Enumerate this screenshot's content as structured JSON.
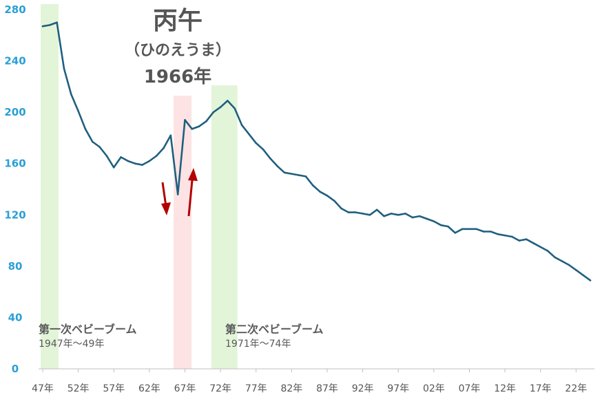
{
  "chart_data": {
    "type": "line",
    "title": "丙午",
    "subtitle": "（ひのえうま）",
    "highlight_year_label": "1966年",
    "ylim": [
      0,
      280
    ],
    "yticks": [
      0,
      40,
      80,
      120,
      160,
      200,
      240,
      280
    ],
    "xticks": [
      {
        "year": 1947,
        "label": "47年"
      },
      {
        "year": 1952,
        "label": "52年"
      },
      {
        "year": 1957,
        "label": "57年"
      },
      {
        "year": 1962,
        "label": "62年"
      },
      {
        "year": 1967,
        "label": "67年"
      },
      {
        "year": 1972,
        "label": "72年"
      },
      {
        "year": 1977,
        "label": "77年"
      },
      {
        "year": 1982,
        "label": "82年"
      },
      {
        "year": 1987,
        "label": "87年"
      },
      {
        "year": 1992,
        "label": "92年"
      },
      {
        "year": 1997,
        "label": "97年"
      },
      {
        "year": 2002,
        "label": "02年"
      },
      {
        "year": 2007,
        "label": "07年"
      },
      {
        "year": 2012,
        "label": "12年"
      },
      {
        "year": 2017,
        "label": "17年"
      },
      {
        "year": 2022,
        "label": "22年"
      }
    ],
    "bands": [
      {
        "name": "first-boom",
        "label": "第一次ベビーブーム",
        "sub": "1947年〜49年",
        "from": 1947,
        "to": 1949,
        "color": "#e2f5d8"
      },
      {
        "name": "hinoeuma",
        "label": "",
        "sub": "",
        "from": 1965.7,
        "to": 1966.3,
        "color": "#fde3e3"
      },
      {
        "name": "second-boom",
        "label": "第二次ベビーブーム",
        "sub": "1971年〜74年",
        "from": 1971,
        "to": 1974,
        "color": "#e2f5d8"
      }
    ],
    "series": [
      {
        "color": "#1f5f7f",
        "x": [
          1947,
          1948,
          1949,
          1950,
          1951,
          1952,
          1953,
          1954,
          1955,
          1956,
          1957,
          1958,
          1959,
          1960,
          1961,
          1962,
          1963,
          1964,
          1965,
          1966,
          1967,
          1968,
          1969,
          1970,
          1971,
          1972,
          1973,
          1974,
          1975,
          1976,
          1977,
          1978,
          1979,
          1980,
          1981,
          1982,
          1983,
          1984,
          1985,
          1986,
          1987,
          1988,
          1989,
          1990,
          1991,
          1992,
          1993,
          1994,
          1995,
          1996,
          1997,
          1998,
          1999,
          2000,
          2001,
          2002,
          2003,
          2004,
          2005,
          2006,
          2007,
          2008,
          2009,
          2010,
          2011,
          2012,
          2013,
          2014,
          2015,
          2016,
          2017,
          2018,
          2019,
          2020,
          2021,
          2022,
          2023,
          2024
        ],
        "values": [
          267,
          268,
          270,
          234,
          214,
          201,
          187,
          177,
          173,
          166,
          157,
          165,
          162,
          160,
          159,
          162,
          166,
          172,
          182,
          136,
          194,
          187,
          189,
          193,
          200,
          204,
          209,
          203,
          190,
          183,
          176,
          171,
          164,
          158,
          153,
          152,
          151,
          150,
          143,
          138,
          135,
          131,
          125,
          122,
          122,
          121,
          120,
          124,
          119,
          121,
          120,
          121,
          118,
          119,
          117,
          115,
          112,
          111,
          106,
          109,
          109,
          109,
          107,
          107,
          105,
          104,
          103,
          100,
          101,
          98,
          95,
          92,
          87,
          84,
          81,
          77,
          73,
          69
        ]
      }
    ]
  }
}
